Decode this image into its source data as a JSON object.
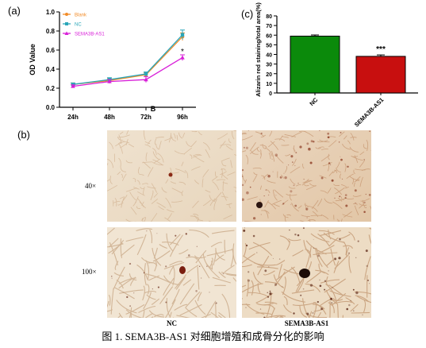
{
  "panel_labels": {
    "a": "(a)",
    "b": "(b)",
    "c": "(c)"
  },
  "chart_data": [
    {
      "type": "line",
      "ylabel": "OD Value",
      "xlabel": "",
      "categories": [
        "24h",
        "48h",
        "72h",
        "96h"
      ],
      "ylim": [
        0,
        1.0
      ],
      "yticks": [
        "0.0",
        "0.2",
        "0.4",
        "0.6",
        "0.8",
        "1.0"
      ],
      "legend_position": "top-left",
      "panel_mark": "B",
      "significance": "*",
      "series": [
        {
          "name": "Blank",
          "color": "#f28c28",
          "values": [
            0.24,
            0.28,
            0.34,
            0.74
          ],
          "errors": [
            0.015,
            0.02,
            0.02,
            0.04
          ]
        },
        {
          "name": "NC",
          "color": "#2aa6b8",
          "values": [
            0.24,
            0.29,
            0.35,
            0.76
          ],
          "errors": [
            0.015,
            0.02,
            0.02,
            0.05
          ]
        },
        {
          "name": "SEMA3B-AS1",
          "color": "#d81fd8",
          "values": [
            0.22,
            0.27,
            0.29,
            0.52
          ],
          "errors": [
            0.015,
            0.02,
            0.03,
            0.03
          ]
        }
      ]
    },
    {
      "type": "bar",
      "ylabel": "Alizarin red staining/total area(%)",
      "categories": [
        "NC",
        "SEMA3B-AS1"
      ],
      "values": [
        59,
        38
      ],
      "errors": [
        1.2,
        1.5
      ],
      "colors": [
        "#0b8a0b",
        "#c80f0f"
      ],
      "ylim": [
        0,
        80
      ],
      "yticks": [
        "0",
        "10",
        "20",
        "30",
        "40",
        "50",
        "60",
        "70",
        "80"
      ],
      "significance": "***"
    }
  ],
  "micrographs": {
    "row_labels": [
      "40×",
      "100×"
    ],
    "col_labels": [
      "NC",
      "SEMA3B-AS1"
    ]
  },
  "caption": "图 1. SEMA3B-AS1 对细胞增殖和成骨分化的影响"
}
